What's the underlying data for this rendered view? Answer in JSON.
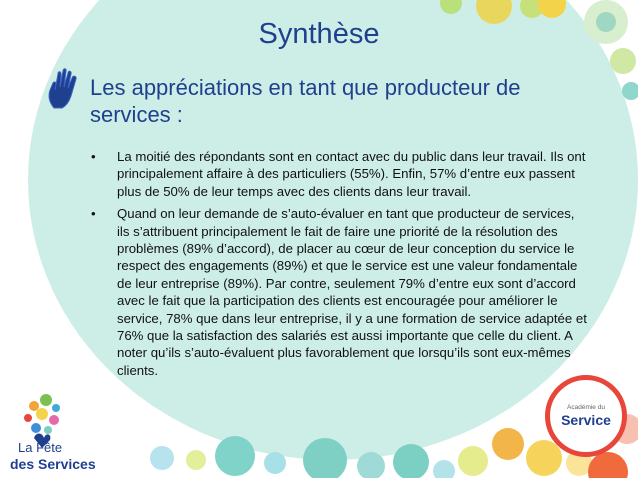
{
  "slide": {
    "title": "Synthèse",
    "subtitle": "Les appréciations en tant que producteur de services :",
    "bullet_char": "•",
    "bullets": [
      "La moitié des répondants sont en contact avec du public dans leur travail. Ils ont principalement affaire à des particuliers (55%). Enfin, 57% d’entre eux passent plus de 50% de leur temps avec des clients dans leur travail.",
      "Quand on leur demande de s’auto-évaluer en tant que producteur de services, ils s’attribuent principalement le fait de faire une priorité de la résolution des problèmes (89% d’accord), de placer au cœur de leur conception du service le respect des engagements (89%) et que le service est une valeur fondamentale de leur entreprise (89%). Par contre, seulement 79% d’entre eux sont d’accord avec le fait que la participation des clients est encouragée pour améliorer le service, 78% que dans leur entreprise, il y a une formation de service adaptée et 76% que la satisfaction des salariés est aussi importante que celle du client. A noter qu’ils s’auto-évaluent plus favorablement que lorsqu’ils sont eux-mêmes clients."
    ]
  },
  "logos": {
    "fete_line1": "La Fête",
    "fete_line2": "des Services",
    "badge_small": "Académie du",
    "badge_big": "Service"
  },
  "colors": {
    "title": "#1f3f8f",
    "body_text": "#111111",
    "mint_background": "#cdeee6",
    "badge_ring": "#e8463a"
  }
}
